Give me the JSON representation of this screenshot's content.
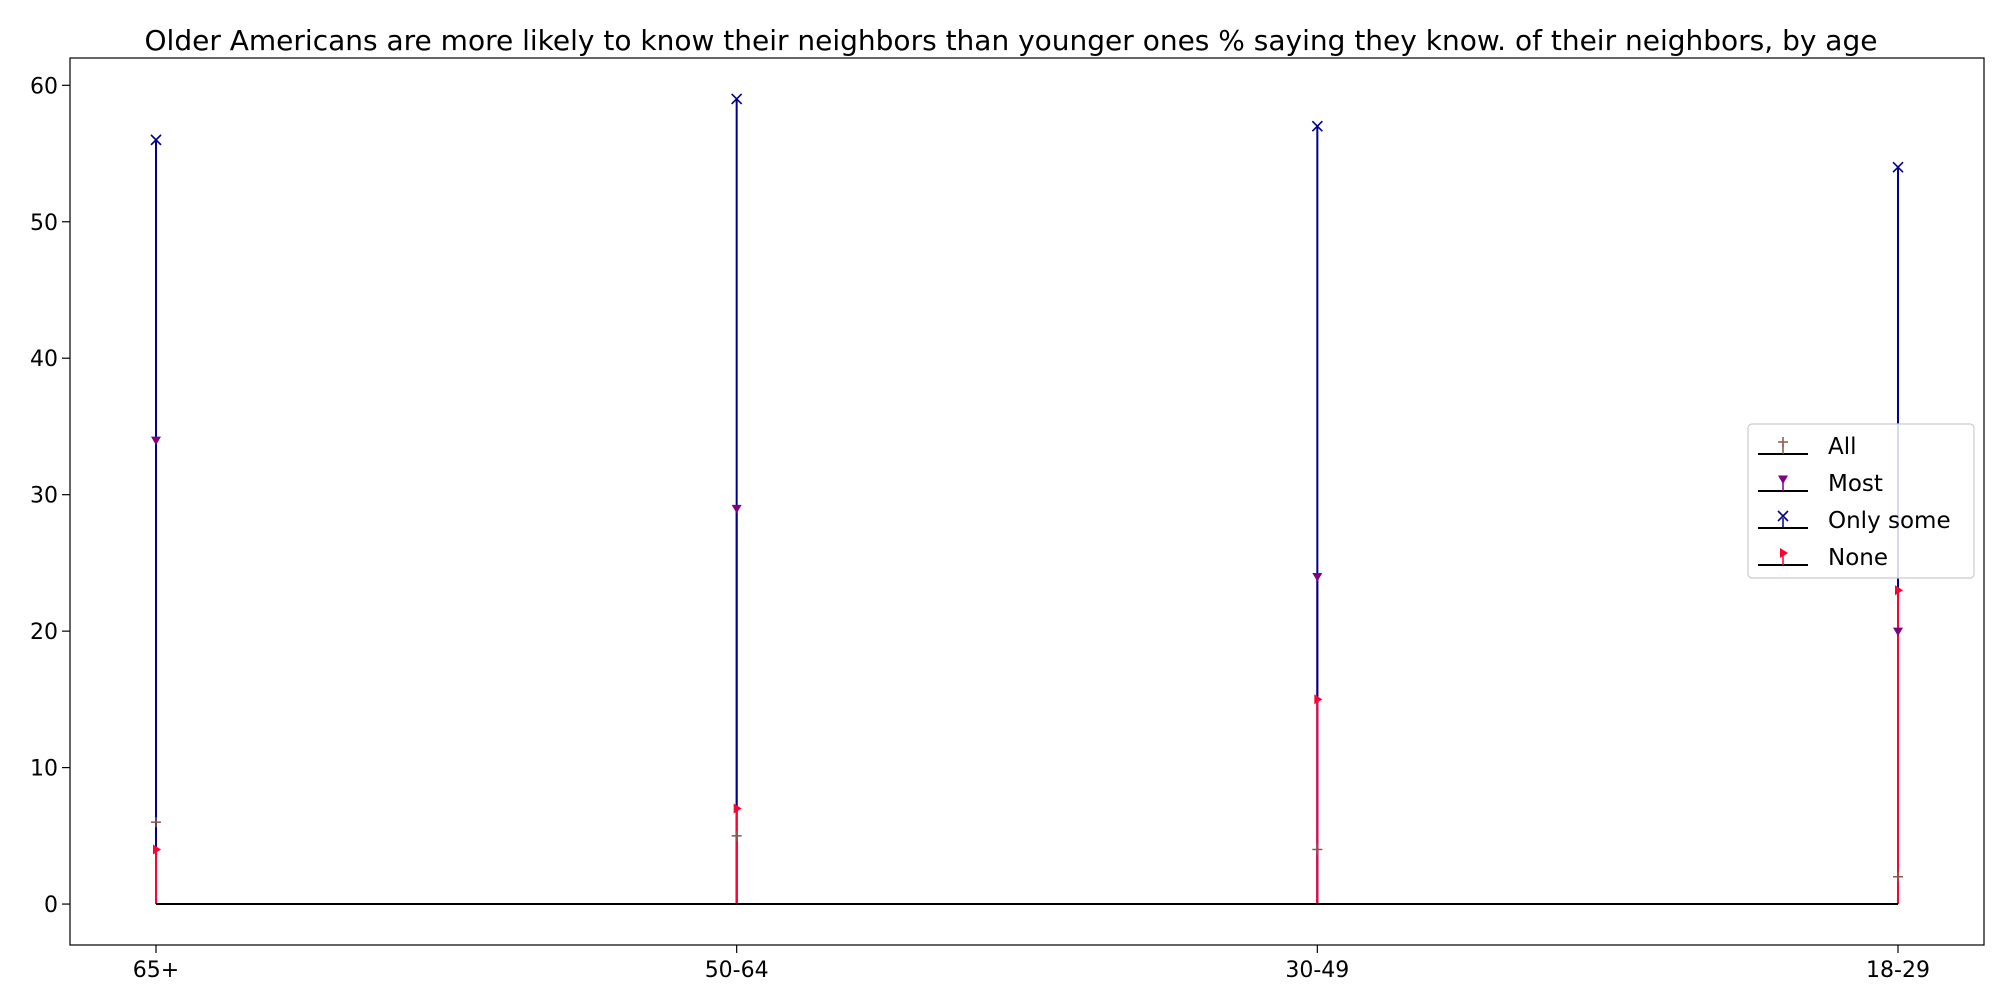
{
  "chart_data": {
    "type": "stem",
    "title": "Older Americans are more likely to know their neighbors than younger ones % saying they know. of their neighbors, by age",
    "xlabel": "",
    "ylabel": "",
    "categories": [
      "65+",
      "50-64",
      "30-49",
      "18-29"
    ],
    "ylim": [
      -3,
      62
    ],
    "yticks": [
      0,
      10,
      20,
      30,
      40,
      50,
      60
    ],
    "grid": false,
    "legend_position": "center-right",
    "series": [
      {
        "name": "All",
        "values": [
          6,
          5,
          4,
          2
        ],
        "color": "#8c564b",
        "marker": "plus"
      },
      {
        "name": "Most",
        "values": [
          34,
          29,
          24,
          20
        ],
        "color": "#800080",
        "marker": "triangle-down"
      },
      {
        "name": "Only some",
        "values": [
          56,
          59,
          57,
          54
        ],
        "color": "#00008b",
        "marker": "x"
      },
      {
        "name": "None",
        "values": [
          4,
          7,
          15,
          23
        ],
        "color": "#ff0033",
        "marker": "flag"
      }
    ]
  }
}
